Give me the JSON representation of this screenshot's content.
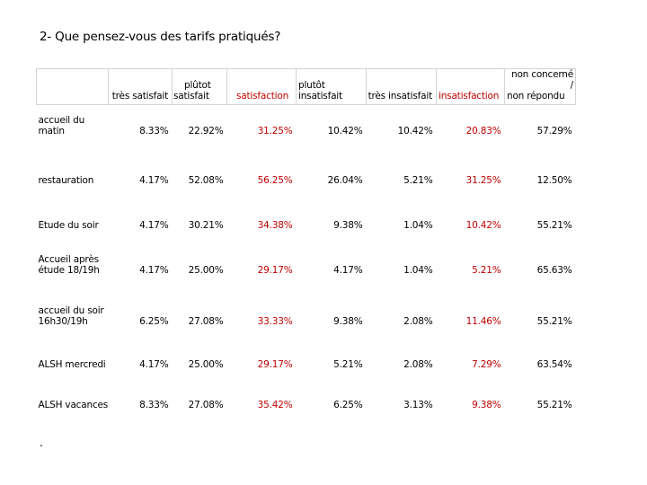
{
  "title": "2- Que pensez-vous des tarifs pratiqués?",
  "footer_mark": ".",
  "colors": {
    "highlight": "#c00000",
    "grid": "#d4d4d4"
  },
  "headers": {
    "tres_satisfait": "très satisfait",
    "plutot_satisfait_1": "plûtot",
    "plutot_satisfait_2": "satisfait",
    "satisfaction": "satisfaction",
    "plutot_insatisfait_1": "plutôt",
    "plutot_insatisfait_2": "insatisfait",
    "tres_insatisfait": "très insatisfait",
    "insatisfaction": "insatisfaction",
    "non_concerne_1": "non concerné /",
    "non_concerne_2": "non répondu"
  },
  "rows": [
    {
      "label_1": "accueil du",
      "label_2": "matin",
      "values": [
        "8.33%",
        "22.92%",
        "31.25%",
        "10.42%",
        "10.42%",
        "20.83%",
        "57.29%"
      ]
    },
    {
      "label_1": "restauration",
      "label_2": "",
      "values": [
        "4.17%",
        "52.08%",
        "56.25%",
        "26.04%",
        "5.21%",
        "31.25%",
        "12.50%"
      ]
    },
    {
      "label_1": "Etude du soir",
      "label_2": "",
      "values": [
        "4.17%",
        "30.21%",
        "34.38%",
        "9.38%",
        "1.04%",
        "10.42%",
        "55.21%"
      ]
    },
    {
      "label_1": "Accueil après",
      "label_2": "étude 18/19h",
      "values": [
        "4.17%",
        "25.00%",
        "29.17%",
        "4.17%",
        "1.04%",
        "5.21%",
        "65.63%"
      ]
    },
    {
      "label_1": "accueil du soir",
      "label_2": "16h30/19h",
      "values": [
        "6.25%",
        "27.08%",
        "33.33%",
        "9.38%",
        "2.08%",
        "11.46%",
        "55.21%"
      ]
    },
    {
      "label_1": "ALSH mercredi",
      "label_2": "",
      "values": [
        "4.17%",
        "25.00%",
        "29.17%",
        "5.21%",
        "2.08%",
        "7.29%",
        "63.54%"
      ]
    },
    {
      "label_1": "ALSH vacances",
      "label_2": "",
      "values": [
        "8.33%",
        "27.08%",
        "35.42%",
        "6.25%",
        "3.13%",
        "9.38%",
        "55.21%"
      ]
    }
  ]
}
